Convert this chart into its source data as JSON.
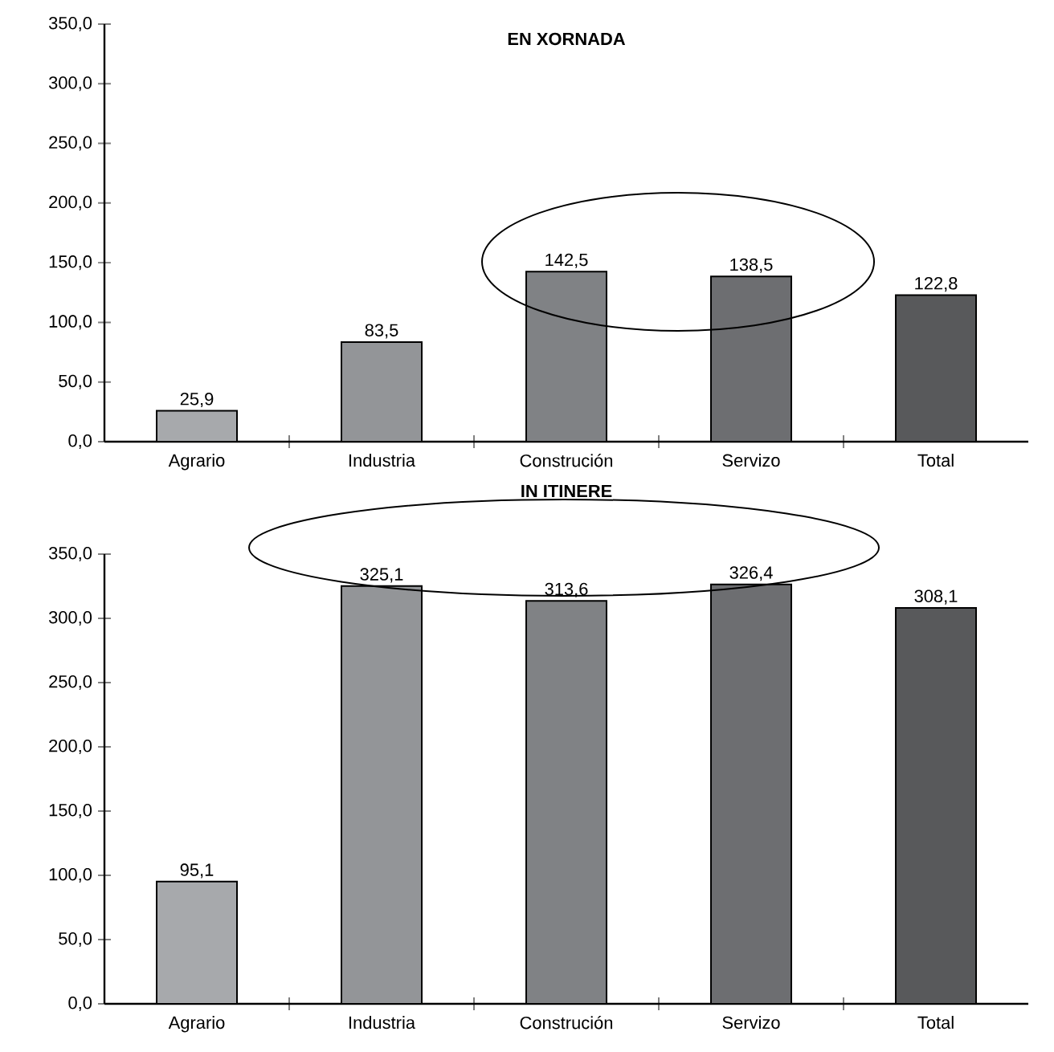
{
  "chart_data": [
    {
      "type": "bar",
      "title": "EN XORNADA",
      "categories": [
        "Agrario",
        "Industria",
        "Construción",
        "Servizo",
        "Total"
      ],
      "values": [
        25.9,
        83.5,
        142.5,
        138.5,
        122.8
      ],
      "value_labels": [
        "25,9",
        "83,5",
        "142,5",
        "138,5",
        "122,8"
      ],
      "colors": [
        "#a7a9ac",
        "#939598",
        "#808285",
        "#6d6e71",
        "#58595b"
      ],
      "ylim": [
        0,
        350
      ],
      "yticks": [
        {
          "value": 0,
          "label": "0,0"
        },
        {
          "value": 50,
          "label": "50,0"
        },
        {
          "value": 100,
          "label": "100,0"
        },
        {
          "value": 150,
          "label": "150,0"
        },
        {
          "value": 200,
          "label": "200,0"
        },
        {
          "value": 250,
          "label": "250,0"
        },
        {
          "value": 300,
          "label": "300,0"
        },
        {
          "value": 350,
          "label": "350,0"
        }
      ],
      "grid": false
    },
    {
      "type": "bar",
      "title": "IN ITINERE",
      "categories": [
        "Agrario",
        "Industria",
        "Construción",
        "Servizo",
        "Total"
      ],
      "values": [
        95.1,
        325.1,
        313.6,
        326.4,
        308.1
      ],
      "value_labels": [
        "95,1",
        "325,1",
        "313,6",
        "326,4",
        "308,1"
      ],
      "colors": [
        "#a7a9ac",
        "#939598",
        "#808285",
        "#6d6e71",
        "#58595b"
      ],
      "ylim": [
        0,
        350
      ],
      "yticks": [
        {
          "value": 0,
          "label": "0,0"
        },
        {
          "value": 50,
          "label": "50,0"
        },
        {
          "value": 100,
          "label": "100,0"
        },
        {
          "value": 150,
          "label": "150,0"
        },
        {
          "value": 200,
          "label": "200,0"
        },
        {
          "value": 250,
          "label": "250,0"
        },
        {
          "value": 300,
          "label": "300,0"
        },
        {
          "value": 350,
          "label": "350,0"
        }
      ],
      "grid": false
    }
  ]
}
